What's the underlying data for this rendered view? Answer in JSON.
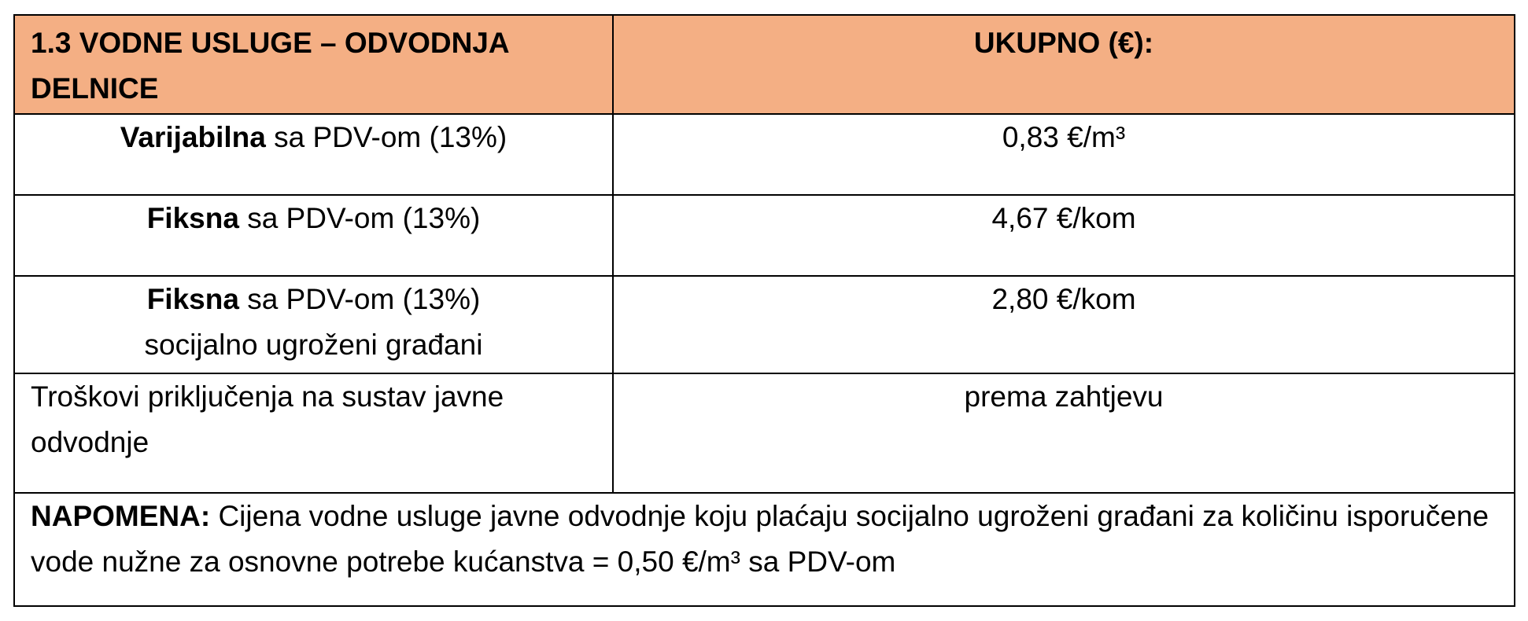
{
  "table": {
    "header": {
      "title": "1.3 VODNE USLUGE – ODVODNJA DELNICE",
      "total_label": "UKUPNO (€):"
    },
    "rows": [
      {
        "label_bold": "Varijabilna",
        "label_rest": " sa PDV-om (13%)",
        "label_extra": "",
        "value": "0,83 €/m³"
      },
      {
        "label_bold": "Fiksna",
        "label_rest": " sa PDV-om (13%)",
        "label_extra": "",
        "value": "4,67 €/kom"
      },
      {
        "label_bold": "Fiksna",
        "label_rest": " sa PDV-om (13%)",
        "label_extra": "socijalno ugroženi građani",
        "value": "2,80 €/kom"
      },
      {
        "label_bold": "",
        "label_rest": "Troškovi priključenja na sustav javne odvodnje",
        "label_extra": "",
        "value": "prema zahtjevu"
      }
    ],
    "note": {
      "label": "NAPOMENA:",
      "text": " Cijena vodne usluge javne odvodnje koju plaćaju socijalno ugroženi građani za količinu  isporučene vode nužne za osnovne potrebe kućanstva = 0,50 €/m³ sa PDV-om"
    }
  },
  "colors": {
    "header_background": "#f4af84",
    "border": "#000000",
    "text": "#000000"
  }
}
